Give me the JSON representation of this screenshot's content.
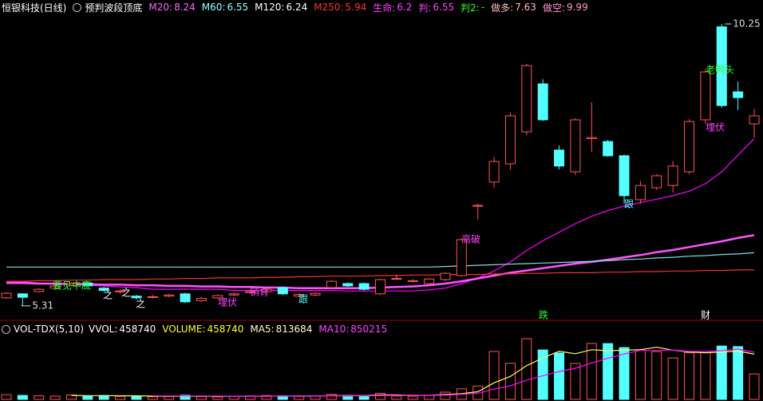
{
  "header": {
    "title": "恒银科技(日线)",
    "indicator": "预判波段顶底",
    "items": [
      {
        "label": "M20:",
        "value": 8.24,
        "color": "#ff66ff"
      },
      {
        "label": "M60:",
        "value": 6.55,
        "color": "#99ffff"
      },
      {
        "label": "M120:",
        "value": 6.24,
        "color": "#ffffff"
      },
      {
        "label": "M250:",
        "value": 5.94,
        "color": "#ff3333"
      },
      {
        "label": "生命:",
        "value": 6.2,
        "color": "#ff44ff"
      },
      {
        "label": "判:",
        "value": 6.55,
        "color": "#ff44ff"
      },
      {
        "label": "判2:",
        "value": "-",
        "color": "#33ff33"
      },
      {
        "label": "做多:",
        "value": 7.63,
        "color": "#ffbbbb"
      },
      {
        "label": "做空:",
        "value": 9.99,
        "color": "#ff99cc"
      }
    ]
  },
  "volume_header": {
    "title": "VOL-TDX(5,10)",
    "items": [
      {
        "label": "VVOL:",
        "value": 458740,
        "color": "#ffffff"
      },
      {
        "label": "VOLUME:",
        "value": 458740,
        "color": "#ffff33"
      },
      {
        "label": "MA5:",
        "value": 813684,
        "color": "#ffffcc"
      },
      {
        "label": "MA10:",
        "value": 850215,
        "color": "#ff44ff"
      }
    ]
  },
  "chart_data": [
    {
      "type": "candlestick",
      "ylim": [
        5.14,
        10.39
      ],
      "up_color": "#ff5555",
      "down_color": "#54ffff",
      "open": [
        5.45,
        5.52,
        5.56,
        5.62,
        5.67,
        5.71,
        5.62,
        5.56,
        5.48,
        5.46,
        5.48,
        5.52,
        5.4,
        5.45,
        5.5,
        5.54,
        5.56,
        5.63,
        5.48,
        5.5,
        5.63,
        5.7,
        5.7,
        5.52,
        5.78,
        5.74,
        5.7,
        5.77,
        5.84,
        7.06,
        7.48,
        7.8,
        8.36,
        9.2,
        8.04,
        7.66,
        8.24,
        8.19,
        7.94,
        7.17,
        7.38,
        7.42,
        7.66,
        8.57,
        10.2,
        9.06,
        8.5
      ],
      "high": [
        5.55,
        5.53,
        5.62,
        5.68,
        5.72,
        5.73,
        5.64,
        5.6,
        5.5,
        5.5,
        5.52,
        5.54,
        5.46,
        5.51,
        5.54,
        5.58,
        5.62,
        5.65,
        5.53,
        5.55,
        5.76,
        5.72,
        5.72,
        5.79,
        5.86,
        5.78,
        5.8,
        5.9,
        6.5,
        7.1,
        7.92,
        8.7,
        9.55,
        9.28,
        8.12,
        8.6,
        8.88,
        8.22,
        7.96,
        7.5,
        7.62,
        7.85,
        8.58,
        9.45,
        10.25,
        9.24,
        8.76
      ],
      "low": [
        5.43,
        5.31,
        5.55,
        5.6,
        5.65,
        5.64,
        5.56,
        5.52,
        5.42,
        5.44,
        5.46,
        5.36,
        5.38,
        5.43,
        5.48,
        5.52,
        5.54,
        5.5,
        5.46,
        5.48,
        5.61,
        5.64,
        5.58,
        5.5,
        5.76,
        5.72,
        5.69,
        5.75,
        5.82,
        6.82,
        7.38,
        7.7,
        8.3,
        8.55,
        7.7,
        7.6,
        8.01,
        7.92,
        7.1,
        7.1,
        7.34,
        7.3,
        7.62,
        8.5,
        8.78,
        8.74,
        8.26
      ],
      "close": [
        5.53,
        5.46,
        5.6,
        5.66,
        5.7,
        5.66,
        5.58,
        5.57,
        5.45,
        5.47,
        5.5,
        5.38,
        5.44,
        5.49,
        5.52,
        5.56,
        5.6,
        5.52,
        5.51,
        5.53,
        5.74,
        5.66,
        5.6,
        5.77,
        5.79,
        5.75,
        5.78,
        5.88,
        6.47,
        7.07,
        7.84,
        8.64,
        9.52,
        8.57,
        7.76,
        8.57,
        8.26,
        7.94,
        7.24,
        7.42,
        7.59,
        7.76,
        8.54,
        9.41,
        8.82,
        8.96,
        8.64
      ],
      "series": [
        {
          "color": "#ff00ff",
          "values": [
            5.74,
            5.73,
            5.71,
            5.7,
            5.69,
            5.67,
            5.66,
            5.64,
            5.63,
            5.6,
            5.6,
            5.6,
            5.6,
            5.6,
            5.58,
            5.58,
            5.58,
            5.58,
            5.58,
            5.58,
            5.58,
            5.57,
            5.57,
            5.57,
            5.57,
            5.57,
            5.59,
            5.62,
            5.7,
            5.8,
            5.92,
            6.08,
            6.28,
            6.45,
            6.6,
            6.75,
            6.88,
            6.98,
            7.06,
            7.12,
            7.18,
            7.24,
            7.32,
            7.45,
            7.66,
            7.95,
            8.24
          ]
        },
        {
          "color": "#ff55ff",
          "values": [
            5.71,
            5.71,
            5.7,
            5.7,
            5.69,
            5.69,
            5.68,
            5.68,
            5.67,
            5.67,
            5.66,
            5.66,
            5.65,
            5.65,
            5.64,
            5.64,
            5.63,
            5.63,
            5.62,
            5.62,
            5.62,
            5.62,
            5.62,
            5.63,
            5.64,
            5.65,
            5.67,
            5.7,
            5.74,
            5.79,
            5.84,
            5.89,
            5.93,
            5.97,
            6.01,
            6.05,
            6.08,
            6.12,
            6.16,
            6.2,
            6.25,
            6.29,
            6.34,
            6.39,
            6.44,
            6.5,
            6.55
          ]
        },
        {
          "color": "#88dddd",
          "values": [
            5.99,
            5.99,
            5.99,
            5.99,
            5.99,
            5.99,
            5.99,
            5.99,
            5.99,
            5.99,
            5.99,
            5.99,
            5.99,
            5.99,
            5.99,
            5.99,
            5.99,
            5.99,
            5.99,
            5.99,
            5.99,
            5.99,
            5.99,
            5.99,
            5.99,
            5.99,
            5.99,
            6.0,
            6.01,
            6.02,
            6.03,
            6.04,
            6.05,
            6.06,
            6.07,
            6.08,
            6.09,
            6.1,
            6.12,
            6.13,
            6.15,
            6.16,
            6.18,
            6.19,
            6.21,
            6.22,
            6.24
          ]
        },
        {
          "color": "#ee3333",
          "values": [
            5.74,
            5.74,
            5.75,
            5.75,
            5.76,
            5.76,
            5.77,
            5.77,
            5.77,
            5.78,
            5.78,
            5.79,
            5.79,
            5.8,
            5.8,
            5.8,
            5.81,
            5.81,
            5.82,
            5.82,
            5.83,
            5.83,
            5.83,
            5.84,
            5.84,
            5.85,
            5.85,
            5.86,
            5.86,
            5.86,
            5.87,
            5.87,
            5.88,
            5.88,
            5.89,
            5.89,
            5.89,
            5.9,
            5.9,
            5.91,
            5.91,
            5.92,
            5.92,
            5.93,
            5.93,
            5.94,
            5.94
          ]
        }
      ],
      "annotations": [
        {
          "text": "要见中底",
          "color": "#33ff33"
        },
        {
          "text": "之",
          "color": "#ffffff"
        },
        {
          "text": "之",
          "color": "#ffffff"
        },
        {
          "text": "之",
          "color": "#ffffff"
        },
        {
          "text": "埋伏",
          "color": "#ff44ff"
        },
        {
          "text": "销背",
          "color": "#ff44ff"
        },
        {
          "text": "跟",
          "color": "#54ffff"
        },
        {
          "text": "高破",
          "color": "#ff44ff"
        },
        {
          "text": "跟",
          "color": "#54ffff"
        },
        {
          "text": "埋伏",
          "color": "#ff44ff"
        },
        {
          "text": "老鸭头",
          "color": "#33ff33"
        },
        {
          "text": "跌",
          "color": "#33ff33"
        },
        {
          "text": "财",
          "color": "#ffffff"
        }
      ]
    },
    {
      "type": "bar",
      "ylim": [
        0,
        1150000
      ],
      "values": [
        86000,
        72000,
        65000,
        58000,
        80000,
        62000,
        70000,
        55000,
        60000,
        48000,
        52000,
        75000,
        50000,
        45000,
        58000,
        62000,
        70000,
        66000,
        54000,
        60000,
        90000,
        72000,
        68000,
        110000,
        62000,
        58000,
        75000,
        130000,
        190000,
        240000,
        862000,
        650000,
        1092000,
        890000,
        834000,
        647000,
        1006000,
        1004750,
        932750,
        889750,
        860750,
        745730,
        840000,
        860000,
        960000,
        949680,
        458740
      ],
      "series": [
        {
          "color": "#ffff66",
          "values": [
            null,
            null,
            null,
            null,
            72200,
            67400,
            67000,
            65000,
            65400,
            59000,
            57000,
            58000,
            57000,
            54000,
            56000,
            58000,
            57000,
            60200,
            62000,
            62400,
            68000,
            68400,
            68800,
            80000,
            80400,
            74000,
            74600,
            87000,
            103000,
            138600,
            299400,
            414400,
            606800,
            746800,
            865600,
            822600,
            893800,
            876350,
            884900,
            896050,
            938800,
            886746,
            853796,
            839246,
            853296,
            871082,
            813684
          ]
        },
        {
          "color": "#ff00ff",
          "values": [
            null,
            null,
            null,
            null,
            null,
            null,
            null,
            null,
            null,
            65600,
            62200,
            62500,
            61000,
            59700,
            57500,
            57500,
            57500,
            58600,
            58000,
            59200,
            63000,
            62700,
            64500,
            71000,
            71400,
            71000,
            71500,
            77900,
            91500,
            109500,
            186700,
            244500,
            346900,
            424900,
            502100,
            561000,
            654100,
            741575,
            815850,
            880825,
            880700,
            890273,
            865073,
            862073,
            874673,
            904941,
            850215
          ]
        }
      ]
    }
  ]
}
